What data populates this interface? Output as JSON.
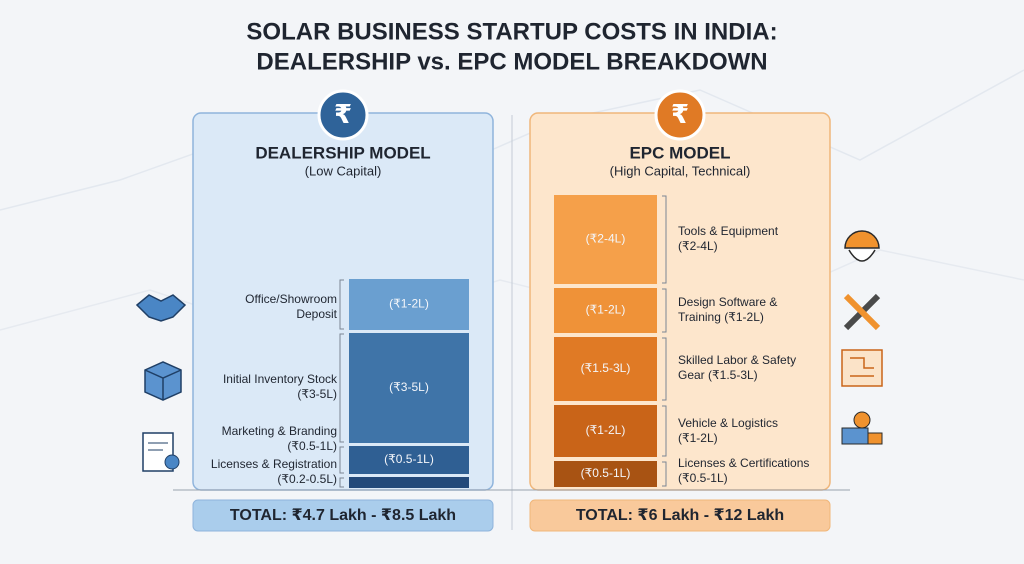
{
  "title": {
    "line1": "SOLAR BUSINESS STARTUP COSTS IN INDIA:",
    "line2": "DEALERSHIP vs. EPC MODEL BREAKDOWN"
  },
  "panels": [
    {
      "heading": "DEALERSHIP MODEL",
      "subheading": "(Low Capital)",
      "icon": "₹",
      "items": [
        {
          "label": "Office/Showroom",
          "label_line2": "Deposit",
          "bar_text": "(₹1-2L)"
        },
        {
          "label": "Initial Inventory Stock",
          "label_line2": "(₹3-5L)",
          "bar_text": "(₹3-5L)"
        },
        {
          "label": "Marketing & Branding",
          "label_line2": "(₹0.5-1L)",
          "bar_text": "(₹0.5-1L)"
        },
        {
          "label": "Licenses & Registration",
          "label_line2": "(₹0.2-0.5L)"
        }
      ],
      "total": "TOTAL: ₹4.7 Lakh - ₹8.5 Lakh"
    },
    {
      "heading": "EPC MODEL",
      "subheading": "(High Capital, Technical)",
      "icon": "₹",
      "items": [
        {
          "label": "Tools & Equipment",
          "label_line2": "(₹2-4L)",
          "bar_text": "(₹2-4L)"
        },
        {
          "label": "Design Software &",
          "label_line2": "Training (₹1-2L)",
          "bar_text": "(₹1-2L)"
        },
        {
          "label": "Skilled Labor & Safety",
          "label_line2": "Gear (₹1.5-3L)",
          "bar_text": "(₹1.5-3L)"
        },
        {
          "label": "Vehicle & Logistics",
          "label_line2": "(₹1-2L)",
          "bar_text": "(₹1-2L)"
        },
        {
          "label": "Licenses & Certifications",
          "label_line2": "(₹0.5-1L)",
          "bar_text": "(₹0.5-1L)"
        }
      ],
      "total": "TOTAL: ₹6 Lakh - ₹12 Lakh"
    }
  ]
}
